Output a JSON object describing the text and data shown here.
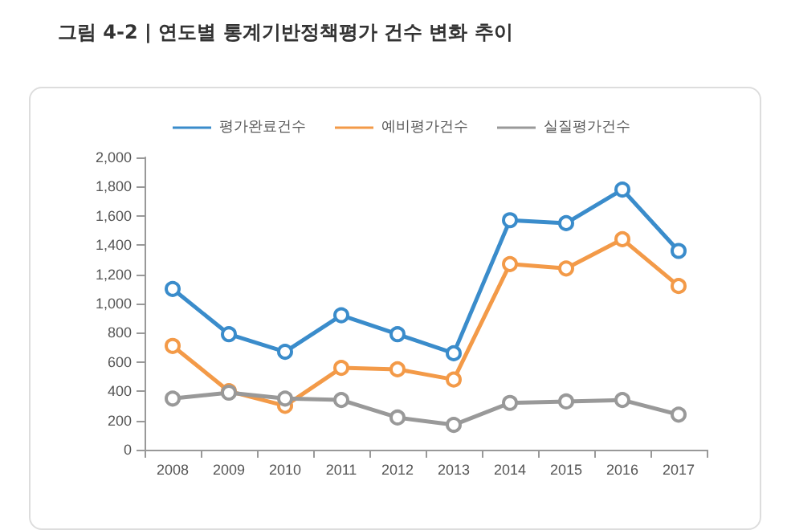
{
  "chart_data": {
    "type": "line",
    "title": "그림 4-2 | 연도별 통계기반정책평가 건수 변화 추이",
    "categories": [
      "2008",
      "2009",
      "2010",
      "2011",
      "2012",
      "2013",
      "2014",
      "2015",
      "2016",
      "2017"
    ],
    "series": [
      {
        "name": "평가완료건수",
        "color": "#3a8ccb",
        "values": [
          1100,
          790,
          670,
          920,
          790,
          660,
          1570,
          1550,
          1780,
          1360
        ]
      },
      {
        "name": "예비평가건수",
        "color": "#f39a48",
        "values": [
          710,
          400,
          300,
          560,
          550,
          480,
          1270,
          1240,
          1440,
          1120
        ]
      },
      {
        "name": "실질평가건수",
        "color": "#999999",
        "values": [
          350,
          390,
          350,
          340,
          220,
          170,
          320,
          330,
          340,
          240
        ]
      }
    ],
    "ylim": [
      0,
      2000
    ],
    "yticks": [
      0,
      200,
      400,
      600,
      800,
      {
        "value": 1000,
        "label": "1,000"
      },
      {
        "value": 1200,
        "label": "1,200"
      },
      {
        "value": 1400,
        "label": "1,400"
      },
      {
        "value": 1600,
        "label": "1,600"
      },
      {
        "value": 1800,
        "label": "1,800"
      },
      {
        "value": 2000,
        "label": "2,000"
      }
    ],
    "grid": false,
    "legend": "top",
    "marker": "circle",
    "line_style": "solid"
  }
}
